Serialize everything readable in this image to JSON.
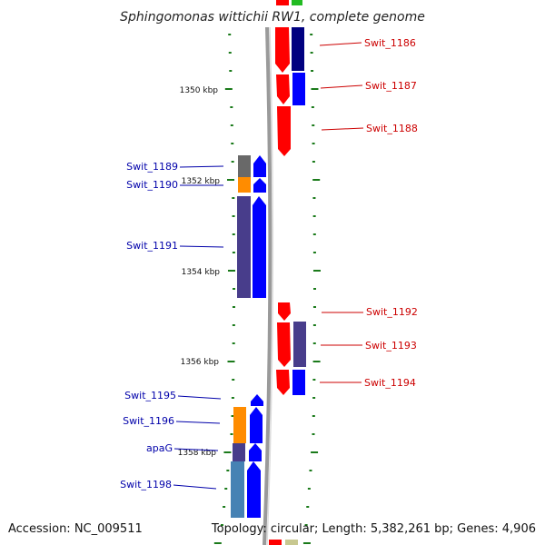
{
  "title": "Sphingomonas wittichii RW1, complete genome",
  "footer": {
    "accession": "Accession: NC_009511",
    "topology": "Topology: circular; Length: 5,382,261 bp; Genes: 4,906"
  },
  "colors": {
    "forward_gene": "#ff0000",
    "reverse_gene": "#0000ff",
    "forward_label": "#cc0000",
    "reverse_label": "#0000aa",
    "tick": "#1a7a1a",
    "backbone": "#888888",
    "cog_dark_blue": "#000080",
    "cog_purple": "#483d8b",
    "cog_gray": "#696969",
    "cog_orange": "#ff8c00",
    "cog_steelblue": "#4682b4"
  },
  "scale_labels": [
    "1350 kbp",
    "1352 kbp",
    "1354 kbp",
    "1356 kbp",
    "1358 kbp"
  ],
  "genes_right": [
    {
      "name": "Swit_1186"
    },
    {
      "name": "Swit_1187"
    },
    {
      "name": "Swit_1188"
    },
    {
      "name": "Swit_1192"
    },
    {
      "name": "Swit_1193"
    },
    {
      "name": "Swit_1194"
    }
  ],
  "genes_left": [
    {
      "name": "Swit_1189"
    },
    {
      "name": "Swit_1190"
    },
    {
      "name": "Swit_1191"
    },
    {
      "name": "Swit_1195"
    },
    {
      "name": "Swit_1196"
    },
    {
      "name": "apaG"
    },
    {
      "name": "Swit_1198"
    }
  ]
}
